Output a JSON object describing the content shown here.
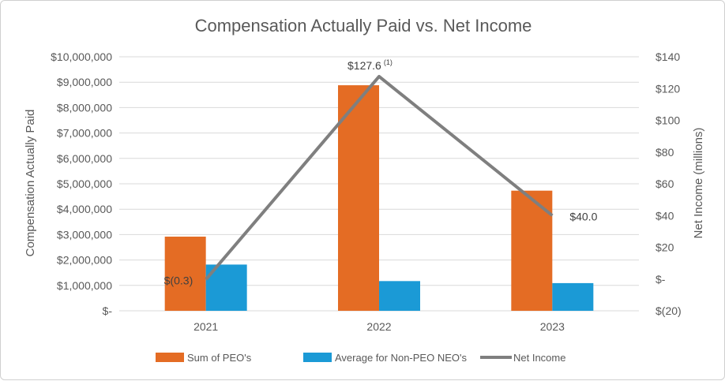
{
  "chart_data": {
    "type": "bar",
    "title": "Compensation Actually Paid vs. Net Income",
    "categories": [
      "2021",
      "2022",
      "2023"
    ],
    "ylabel": "Compensation Actually Paid",
    "y2label": "Net Income (millions)",
    "ylim": [
      0,
      10000000
    ],
    "y_ticks": [
      "$-",
      "$1,000,000",
      "$2,000,000",
      "$3,000,000",
      "$4,000,000",
      "$5,000,000",
      "$6,000,000",
      "$7,000,000",
      "$8,000,000",
      "$9,000,000",
      "$10,000,000"
    ],
    "y2lim": [
      -20,
      140
    ],
    "y2_ticks": [
      "$(20)",
      "$-",
      "$20",
      "$40",
      "$60",
      "$80",
      "$100",
      "$120",
      "$140"
    ],
    "series": [
      {
        "name": "Sum of PEO's",
        "type": "bar",
        "axis": "left",
        "color": "#E46C24",
        "values": [
          2920000,
          8880000,
          4730000
        ]
      },
      {
        "name": "Average for Non-PEO NEO's",
        "type": "bar",
        "axis": "left",
        "color": "#1B9AD6",
        "values": [
          1820000,
          1170000,
          1090000
        ]
      },
      {
        "name": "Net Income",
        "type": "line",
        "axis": "right",
        "color": "#7F7F7F",
        "values": [
          -0.3,
          127.6,
          40.0
        ]
      }
    ],
    "data_labels": [
      {
        "text": "$(0.3)",
        "sup": ""
      },
      {
        "text": "$127.6",
        "sup": "(1)"
      },
      {
        "text": "$40.0",
        "sup": ""
      }
    ],
    "legend_position": "bottom",
    "grid": true
  }
}
